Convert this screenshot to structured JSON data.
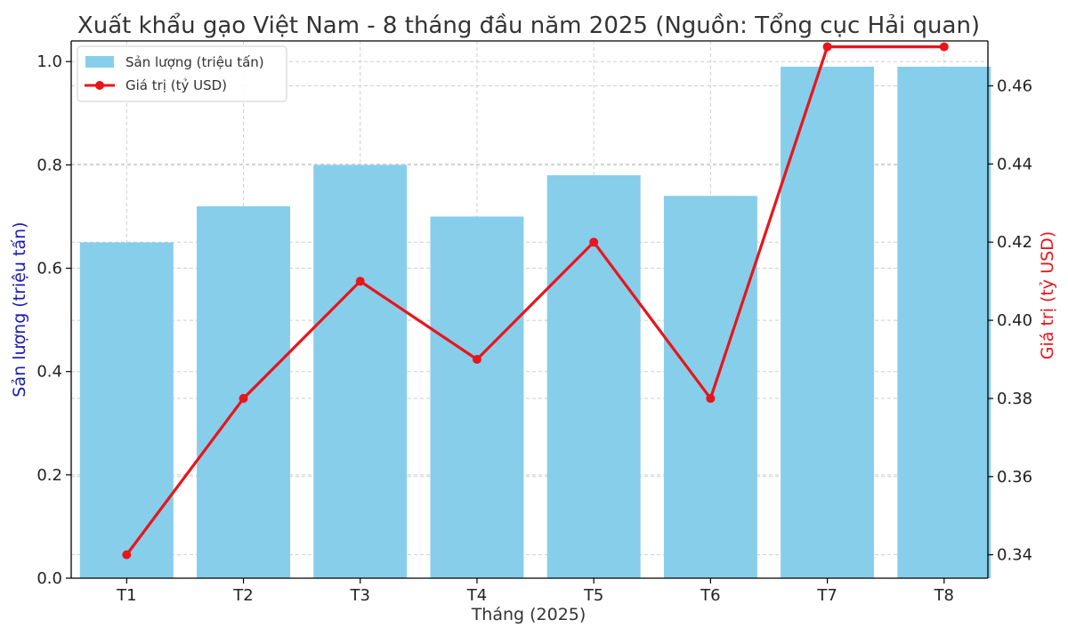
{
  "chart_data": {
    "type": "bar+line",
    "title": "Xuất khẩu gạo Việt Nam - 8 tháng đầu năm 2025 (Nguồn: Tổng cục Hải quan)",
    "xlabel": "Tháng (2025)",
    "categories": [
      "T1",
      "T2",
      "T3",
      "T4",
      "T5",
      "T6",
      "T7",
      "T8"
    ],
    "series": [
      {
        "name": "Sản lượng (triệu tấn)",
        "type": "bar",
        "axis": "left",
        "color": "#87CEEB",
        "values": [
          0.65,
          0.72,
          0.8,
          0.7,
          0.78,
          0.74,
          0.99,
          0.99
        ]
      },
      {
        "name": "Giá trị (tỷ USD)",
        "type": "line",
        "axis": "right",
        "color": "#E8151B",
        "values": [
          0.34,
          0.38,
          0.41,
          0.39,
          0.42,
          0.38,
          0.47,
          0.47
        ]
      }
    ],
    "y_left": {
      "label": "Sản lượng (triệu tấn)",
      "color": "#1a1ab0",
      "range": [
        0,
        1.04
      ],
      "ticks": [
        "0.0",
        "0.2",
        "0.4",
        "0.6",
        "0.8",
        "1.0"
      ]
    },
    "y_right": {
      "label": "Giá trị (tỷ USD)",
      "color": "#E8151B",
      "range": [
        0.334,
        0.4715
      ],
      "ticks": [
        "0.34",
        "0.36",
        "0.38",
        "0.40",
        "0.42",
        "0.44",
        "0.46"
      ]
    },
    "grid": true,
    "legend_position": "top-left"
  }
}
